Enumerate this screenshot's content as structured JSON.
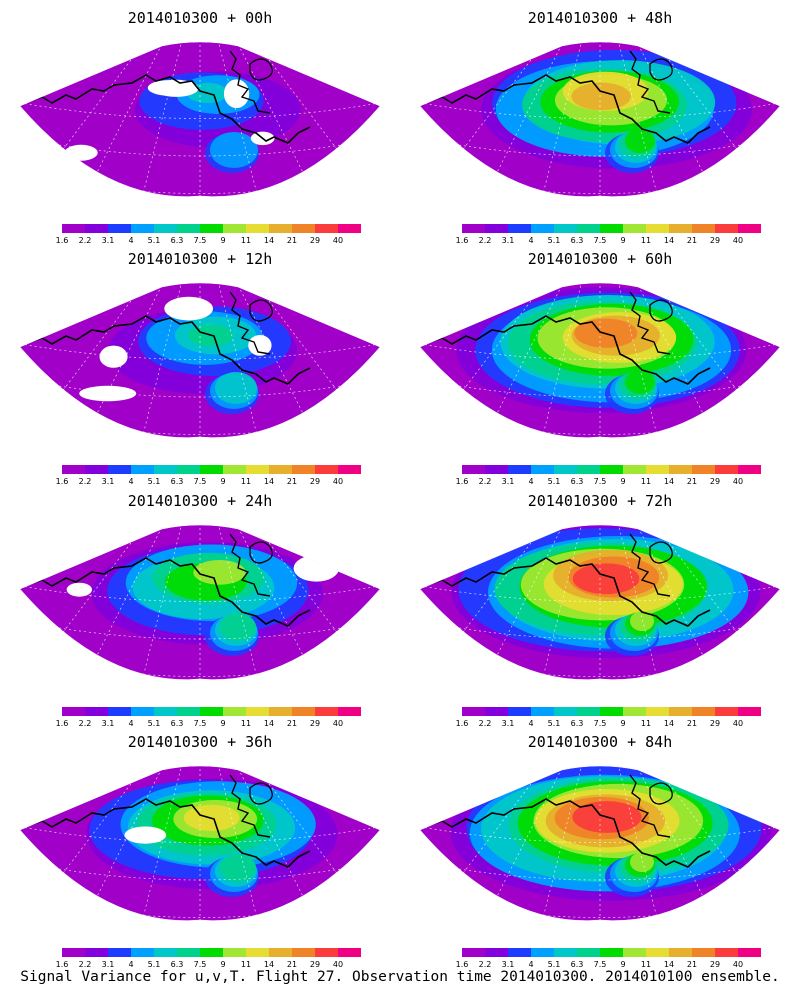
{
  "colorbar": {
    "labels": [
      "1.6",
      "2.2",
      "3.1",
      "4",
      "5.1",
      "6.3",
      "7.5",
      "9",
      "11",
      "14",
      "21",
      "29",
      "40"
    ],
    "colors": [
      "#a000c8",
      "#8200dc",
      "#1e3cff",
      "#00a0ff",
      "#00c8c8",
      "#00d28c",
      "#00dc00",
      "#a0e632",
      "#e6dc32",
      "#e6af2d",
      "#f08228",
      "#fa3c3c",
      "#f00082"
    ]
  },
  "panels": [
    {
      "title": "2014010300 + 00h",
      "intensity": 0.15,
      "coverage": 0.55
    },
    {
      "title": "2014010300 + 12h",
      "intensity": 0.25,
      "coverage": 0.7
    },
    {
      "title": "2014010300 + 24h",
      "intensity": 0.45,
      "coverage": 0.85
    },
    {
      "title": "2014010300 + 36h",
      "intensity": 0.55,
      "coverage": 0.95
    },
    {
      "title": "2014010300 + 48h",
      "intensity": 0.65,
      "coverage": 1
    },
    {
      "title": "2014010300 + 60h",
      "intensity": 0.75,
      "coverage": 1
    },
    {
      "title": "2014010300 + 72h",
      "intensity": 0.85,
      "coverage": 1
    },
    {
      "title": "2014010300 + 84h",
      "intensity": 0.92,
      "coverage": 1
    }
  ],
  "caption": "Signal Variance for u,v,T. Flight 27. Observation time 2014010300. 2014010100 ensemble."
}
